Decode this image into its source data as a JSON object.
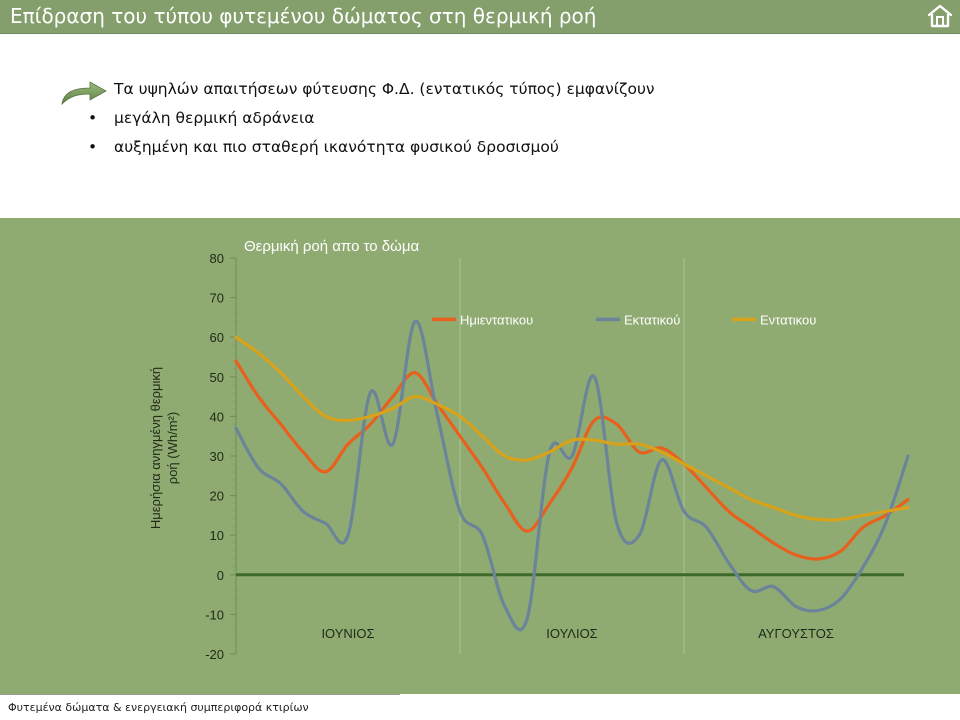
{
  "header": {
    "title": "Επίδραση του τύπου φυτεμένου δώματος στη θερμική ροή",
    "home_icon": "home-icon"
  },
  "content": {
    "intro": "Τα υψηλών απαιτήσεων φύτευσης Φ.Δ. (εντατικός τύπος) εμφανίζουν",
    "bullets": [
      "μεγάλη θερμική αδράνεια",
      "αυξημένη και πιο σταθερή ικανότητα φυσικού δροσισμού"
    ],
    "arrow_icon": "curved-arrow-icon"
  },
  "chart_data": {
    "type": "line",
    "title": "Θερμική ροή απο το δώμα",
    "ylabel": "Ημερήσια ανηγμένη θερμική ροή (Wh/m²)",
    "xlabel": "",
    "ylim": [
      -20,
      80
    ],
    "yticks": [
      "80",
      "70",
      "60",
      "50",
      "40",
      "30",
      "20",
      "10",
      "0",
      "-10",
      "-20"
    ],
    "month_labels": [
      "ΙΟΥΝΙΟΣ",
      "ΙΟΥΛΙΟΣ",
      "ΑΥΓΟΥΣΤΟΣ"
    ],
    "x_days": [
      0,
      3,
      6,
      9,
      12,
      15,
      18,
      21,
      24,
      27,
      30,
      33,
      36,
      39,
      42,
      45,
      48,
      51,
      54,
      57,
      60,
      63,
      66,
      69,
      72,
      75,
      78,
      81,
      84,
      87,
      90
    ],
    "legend_position": "top-right",
    "series": [
      {
        "name": "Ημιεντατικου",
        "color": "#e8601c",
        "values": [
          54,
          45,
          38,
          31,
          26,
          33,
          38,
          45,
          51,
          43,
          35,
          27,
          18,
          11,
          18,
          27,
          39,
          38,
          31,
          32,
          28,
          22,
          16,
          12,
          8,
          5,
          4,
          6,
          12,
          15,
          19
        ]
      },
      {
        "name": "Εκτατικού",
        "color": "#6b8499",
        "values": [
          37,
          27,
          23,
          16,
          13,
          10,
          46,
          33,
          64,
          40,
          16,
          10,
          -8,
          -11,
          31,
          30,
          50,
          13,
          10,
          29,
          16,
          12,
          3,
          -4,
          -3,
          -8,
          -9,
          -6,
          2,
          13,
          30
        ]
      },
      {
        "name": "Εντατικου",
        "color": "#d8a21a",
        "values": [
          60,
          56,
          51,
          45,
          40,
          39,
          40,
          42,
          45,
          43,
          40,
          35,
          30,
          29,
          31,
          34,
          34,
          33,
          33,
          31,
          28,
          25,
          22,
          19,
          17,
          15,
          14,
          14,
          15,
          16,
          17
        ]
      }
    ],
    "background": "#8fab72",
    "zero_line_color": "#3f6a2a"
  },
  "footer": {
    "text": "Φυτεμένα δώματα & ενεργειακή συμπεριφορά κτιρίων"
  }
}
